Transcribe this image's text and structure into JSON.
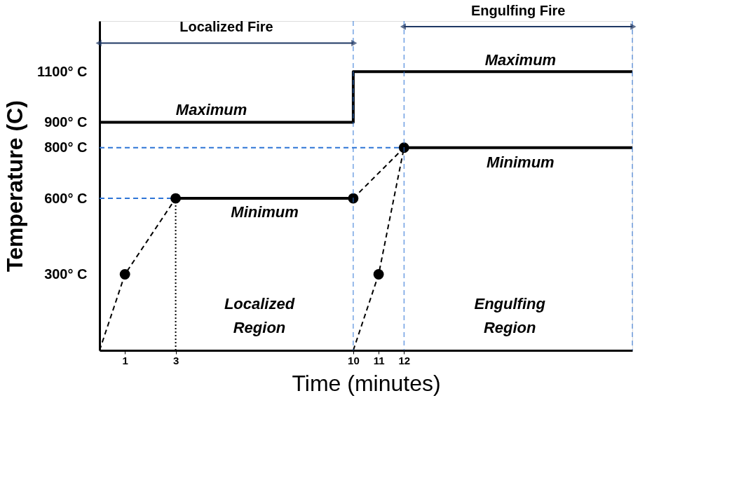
{
  "chart_data": {
    "type": "line",
    "xlabel": "Time (minutes)",
    "ylabel": "Temperature (C)",
    "xlim": [
      0,
      21
    ],
    "ylim": [
      0,
      1300
    ],
    "xticks": [
      1,
      3,
      10,
      11,
      12
    ],
    "yticks": [
      {
        "value": 300,
        "label": "300° C"
      },
      {
        "value": 600,
        "label": "600° C"
      },
      {
        "value": 800,
        "label": "800° C"
      },
      {
        "value": 900,
        "label": "900° C"
      },
      {
        "value": 1100,
        "label": "1100° C"
      }
    ],
    "grid": false,
    "series": [
      {
        "x": [
          0,
          10,
          10,
          21
        ],
        "values": [
          900,
          900,
          1100,
          1100
        ],
        "color": "#000000",
        "line_style": "solid"
      },
      {
        "type": "line",
        "x": [
          3,
          10
        ],
        "values": [
          600,
          600
        ],
        "color": "#000000",
        "line_style": "solid"
      },
      {
        "type": "line",
        "x": [
          12,
          21
        ],
        "values": [
          800,
          800
        ],
        "color": "#000000",
        "line_style": "solid"
      },
      {
        "type": "line",
        "x": [
          0,
          1,
          3
        ],
        "values": [
          0,
          300,
          600
        ],
        "color": "#000000",
        "line_style": "dashed"
      },
      {
        "type": "line",
        "x": [
          10,
          12
        ],
        "values": [
          600,
          800
        ],
        "color": "#000000",
        "line_style": "dashed"
      },
      {
        "type": "line",
        "x": [
          10,
          11,
          12
        ],
        "values": [
          0,
          300,
          800
        ],
        "color": "#000000",
        "line_style": "dashed"
      },
      {
        "type": "line",
        "x": [
          0,
          3
        ],
        "values": [
          600,
          600
        ],
        "color": "#2e75d6",
        "line_style": "dashed"
      },
      {
        "type": "line",
        "x": [
          0,
          12
        ],
        "values": [
          800,
          800
        ],
        "color": "#2e75d6",
        "line_style": "dashed"
      },
      {
        "type": "line",
        "x": [
          3,
          3
        ],
        "values": [
          0,
          600
        ],
        "color": "#000000",
        "line_style": "dotted"
      },
      {
        "type": "scatter",
        "x": [
          3,
          10,
          12
        ],
        "values": [
          600,
          600,
          800
        ],
        "color": "#000000",
        "marker": "circle"
      },
      {
        "type": "scatter",
        "x": [
          1,
          11
        ],
        "values": [
          300,
          300
        ],
        "color": "#000000",
        "marker": "circle"
      }
    ],
    "ref_lines": [
      {
        "axis": "x",
        "value": 10,
        "color": "#2e75d6",
        "line_style": "dashed"
      },
      {
        "axis": "x",
        "value": 12,
        "color": "#2e75d6",
        "line_style": "dashed"
      },
      {
        "axis": "x",
        "value": 21,
        "color": "#2e75d6",
        "line_style": "dashed"
      }
    ],
    "annotations": [
      "Maximum",
      "Maximum",
      "Minimum",
      "Minimum",
      "Localized Region",
      "Engulfing Region",
      "Localized Fire",
      "Engulfing Fire"
    ]
  }
}
